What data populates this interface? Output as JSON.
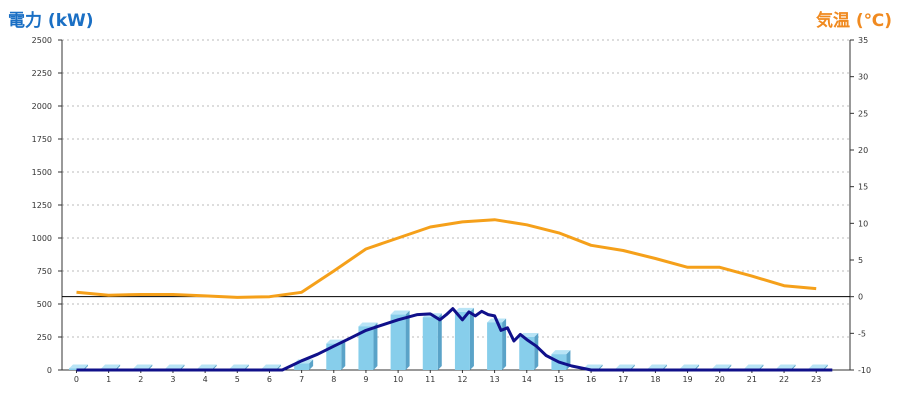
{
  "chart_data": {
    "type": "bar",
    "title_left": "電力 (kW)",
    "title_right": "気温 (℃)",
    "colors": {
      "left_title": "#1a6fc4",
      "right_title": "#f08a20",
      "bars": "#87ceeb",
      "power_line": "#10108a",
      "temp_line": "#f5a01a",
      "zero_line": "#000000",
      "grid": "#bbbbbb"
    },
    "categories": [
      "0",
      "1",
      "2",
      "3",
      "4",
      "5",
      "6",
      "7",
      "8",
      "9",
      "10",
      "11",
      "12",
      "13",
      "14",
      "15",
      "16",
      "17",
      "18",
      "19",
      "20",
      "21",
      "22",
      "23"
    ],
    "y_left": {
      "min": 0,
      "max": 2500,
      "ticks": [
        0,
        250,
        500,
        750,
        1000,
        1250,
        1500,
        1750,
        2000,
        2250,
        2500
      ],
      "tick_labels": [
        "0",
        "250",
        "500",
        "750",
        "1000",
        "1250",
        "1500",
        "1750",
        "2000",
        "2250",
        "2500"
      ]
    },
    "y_right": {
      "min": -10,
      "max": 35,
      "ticks": [
        -10,
        -5,
        0,
        5,
        10,
        15,
        20,
        25,
        30,
        35
      ],
      "tick_labels": [
        "-10",
        "-5",
        "0",
        "5",
        "10",
        "15",
        "20",
        "25",
        "30",
        "35"
      ]
    },
    "grid": true,
    "series": [
      {
        "kind": "bar",
        "axis": "left",
        "values": [
          0,
          0,
          0,
          0,
          0,
          0,
          0,
          50,
          200,
          330,
          420,
          400,
          440,
          360,
          250,
          120,
          0,
          0,
          0,
          0,
          0,
          0,
          0,
          0
        ]
      },
      {
        "kind": "line",
        "axis": "left",
        "points": [
          [
            0,
            0
          ],
          [
            6.4,
            0
          ],
          [
            7,
            70
          ],
          [
            7.5,
            120
          ],
          [
            8,
            180
          ],
          [
            8.5,
            240
          ],
          [
            9,
            300
          ],
          [
            9.5,
            340
          ],
          [
            10,
            380
          ],
          [
            10.3,
            400
          ],
          [
            10.6,
            420
          ],
          [
            11,
            425
          ],
          [
            11.3,
            380
          ],
          [
            11.5,
            420
          ],
          [
            11.7,
            465
          ],
          [
            12,
            380
          ],
          [
            12.2,
            440
          ],
          [
            12.4,
            410
          ],
          [
            12.6,
            445
          ],
          [
            12.8,
            420
          ],
          [
            13,
            410
          ],
          [
            13.2,
            300
          ],
          [
            13.4,
            320
          ],
          [
            13.6,
            220
          ],
          [
            13.8,
            270
          ],
          [
            14,
            230
          ],
          [
            14.3,
            180
          ],
          [
            14.6,
            110
          ],
          [
            15,
            60
          ],
          [
            15.4,
            30
          ],
          [
            16,
            0
          ],
          [
            23.5,
            0
          ]
        ]
      },
      {
        "kind": "line",
        "axis": "right",
        "points": [
          [
            0,
            0.6
          ],
          [
            1,
            0.2
          ],
          [
            2,
            0.3
          ],
          [
            3,
            0.3
          ],
          [
            4,
            0.1
          ],
          [
            5,
            -0.1
          ],
          [
            6,
            0.0
          ],
          [
            7,
            0.6
          ],
          [
            8,
            3.5
          ],
          [
            9,
            6.5
          ],
          [
            10,
            8.0
          ],
          [
            11,
            9.5
          ],
          [
            12,
            10.2
          ],
          [
            13,
            10.5
          ],
          [
            14,
            9.8
          ],
          [
            15,
            8.7
          ],
          [
            16,
            7.0
          ],
          [
            17,
            6.3
          ],
          [
            18,
            5.2
          ],
          [
            19,
            4.0
          ],
          [
            20,
            4.0
          ],
          [
            21,
            2.8
          ],
          [
            22,
            1.5
          ],
          [
            23,
            1.1
          ]
        ]
      }
    ]
  }
}
